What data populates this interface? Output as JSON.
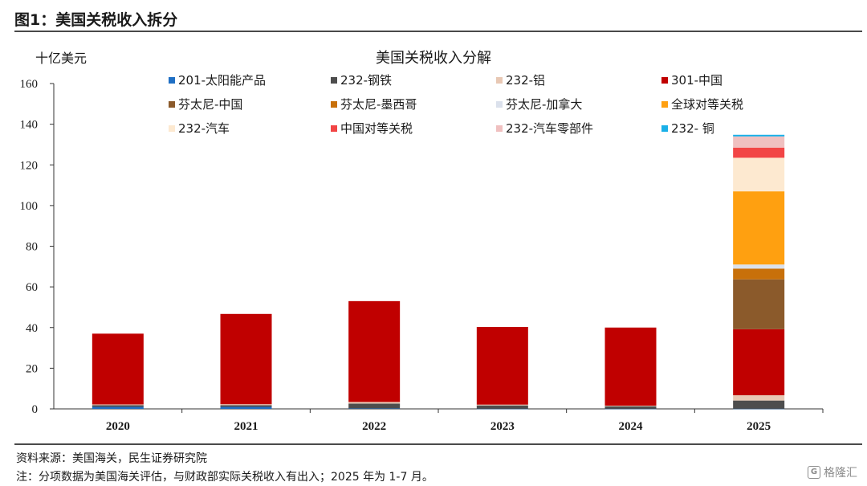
{
  "figure_title": "图1：美国关税收入拆分",
  "source": "资料来源：美国海关，民生证券研究院",
  "note": "注：分项数据为美国海关评估，与财政部实际关税收入有出入；2025 年为 1-7 月。",
  "watermark": {
    "text": "格隆汇",
    "icon": "g-logo-icon"
  },
  "chart_data": {
    "type": "bar",
    "stacked": true,
    "title": "美国关税收入分解",
    "ylabel": "十亿美元",
    "xlabel": "",
    "ylim": [
      0,
      160
    ],
    "yticks": [
      0,
      20,
      40,
      60,
      80,
      100,
      120,
      140,
      160
    ],
    "grid": false,
    "legend_position": "top",
    "categories": [
      "2020",
      "2021",
      "2022",
      "2023",
      "2024",
      "2025"
    ],
    "series": [
      {
        "name": "201-太阳能产品",
        "color": "#1f6fc4",
        "values": [
          1.0,
          1.0,
          0.2,
          0.1,
          0.1,
          0.1
        ]
      },
      {
        "name": "232-钢铁",
        "color": "#4d4d4d",
        "values": [
          0.8,
          0.8,
          2.4,
          1.6,
          1.2,
          4.0
        ]
      },
      {
        "name": "232-铝",
        "color": "#e8c8b4",
        "values": [
          0.4,
          0.5,
          0.8,
          0.4,
          0.3,
          2.6
        ]
      },
      {
        "name": "301-中国",
        "color": "#c00000",
        "values": [
          34.8,
          44.4,
          49.6,
          38.2,
          38.4,
          32.5
        ]
      },
      {
        "name": "芬太尼-中国",
        "color": "#8b5a2b",
        "values": [
          0,
          0,
          0,
          0,
          0,
          24.5
        ]
      },
      {
        "name": "芬太尼-墨西哥",
        "color": "#c8700a",
        "values": [
          0,
          0,
          0,
          0,
          0,
          5.3
        ]
      },
      {
        "name": "芬太尼-加拿大",
        "color": "#dbe1ec",
        "values": [
          0,
          0,
          0,
          0,
          0,
          2.0
        ]
      },
      {
        "name": "全球对等关税",
        "color": "#ffa010",
        "values": [
          0,
          0,
          0,
          0,
          0,
          36.0
        ]
      },
      {
        "name": "232-汽车",
        "color": "#fde9d0",
        "values": [
          0,
          0,
          0,
          0,
          0,
          16.5
        ]
      },
      {
        "name": "中国对等关税",
        "color": "#f24545",
        "values": [
          0,
          0,
          0,
          0,
          0,
          5.0
        ]
      },
      {
        "name": "232-汽车零部件",
        "color": "#f0c0c0",
        "values": [
          0,
          0,
          0,
          0,
          0,
          5.5
        ]
      },
      {
        "name": "232- 铜",
        "color": "#1ab0e8",
        "values": [
          0,
          0,
          0,
          0,
          0,
          0.8
        ]
      }
    ]
  }
}
